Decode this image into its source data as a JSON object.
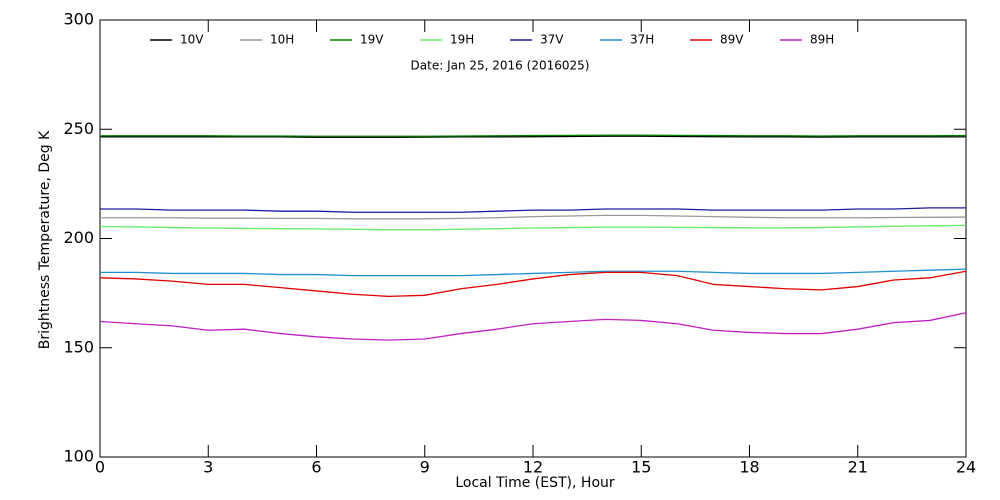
{
  "chart_data": {
    "type": "line",
    "annotation": "Date: Jan 25, 2016 (2016025)",
    "x_label": "Local Time (EST), Hour",
    "y_label": "Brightness Temperature, Deg K",
    "x": [
      0,
      1,
      2,
      3,
      4,
      5,
      6,
      7,
      8,
      9,
      10,
      11,
      12,
      13,
      14,
      15,
      16,
      17,
      18,
      19,
      20,
      21,
      22,
      23,
      24
    ],
    "xlim": [
      0,
      24
    ],
    "xticks": [
      0,
      3,
      6,
      9,
      12,
      15,
      18,
      21,
      24
    ],
    "ylim": [
      100,
      300
    ],
    "yticks": [
      100,
      150,
      200,
      250,
      300
    ],
    "series": [
      {
        "name": "10V",
        "color": "#000000",
        "values": [
          246.5,
          246.5,
          246.5,
          246.5,
          246.5,
          246.5,
          246.3,
          246.3,
          246.3,
          246.4,
          246.5,
          246.5,
          246.6,
          246.7,
          246.8,
          246.8,
          246.7,
          246.6,
          246.5,
          246.5,
          246.4,
          246.5,
          246.5,
          246.5,
          246.5
        ]
      },
      {
        "name": "10H",
        "color": "#999999",
        "values": [
          209.5,
          209.5,
          209.5,
          209.3,
          209.3,
          209.2,
          209.2,
          209,
          209,
          209,
          209.2,
          209.5,
          210,
          210.3,
          210.6,
          210.6,
          210.3,
          210,
          209.7,
          209.5,
          209.5,
          209.5,
          209.6,
          209.7,
          209.8
        ]
      },
      {
        "name": "19V",
        "color": "#008000",
        "values": [
          247,
          247,
          247,
          247,
          246.9,
          246.9,
          246.8,
          246.8,
          246.8,
          246.8,
          246.9,
          247,
          247.1,
          247.2,
          247.3,
          247.3,
          247.2,
          247.1,
          247,
          247,
          246.9,
          247,
          247,
          247,
          247.1
        ]
      },
      {
        "name": "19H",
        "color": "#66ee66",
        "values": [
          205.5,
          205.3,
          205,
          204.8,
          204.6,
          204.5,
          204.4,
          204.2,
          204,
          204,
          204.2,
          204.5,
          204.8,
          205,
          205.2,
          205.2,
          205.1,
          205,
          204.9,
          204.9,
          205,
          205.3,
          205.6,
          205.8,
          206
        ]
      },
      {
        "name": "37V",
        "color": "#1a1aa0",
        "values": [
          213.5,
          213.5,
          213,
          213,
          213,
          212.5,
          212.5,
          212,
          212,
          212,
          212,
          212.5,
          213,
          213,
          213.5,
          213.5,
          213.5,
          213,
          213,
          213,
          213,
          213.5,
          213.5,
          214,
          214
        ]
      },
      {
        "name": "37H",
        "color": "#1e90d0",
        "values": [
          184.5,
          184.5,
          184,
          184,
          184,
          183.5,
          183.5,
          183,
          183,
          183,
          183,
          183.5,
          184,
          184.5,
          185,
          185,
          185,
          184.5,
          184,
          184,
          184,
          184.5,
          185,
          185.5,
          186
        ]
      },
      {
        "name": "89V",
        "color": "#e00000",
        "values": [
          182,
          181.5,
          180.5,
          179,
          179,
          177.5,
          176,
          174.5,
          173.5,
          174,
          177,
          179,
          181.5,
          183.5,
          184.5,
          184.5,
          183,
          179,
          178,
          177,
          176.5,
          178,
          181,
          182,
          185
        ]
      },
      {
        "name": "89H",
        "color": "#c020c0",
        "values": [
          162,
          161,
          160,
          158,
          158.5,
          156.5,
          155,
          154,
          153.5,
          154,
          156.5,
          158.5,
          161,
          162,
          163,
          162.5,
          161,
          158,
          157,
          156.5,
          156.5,
          158.5,
          161.5,
          162.5,
          166
        ]
      }
    ]
  }
}
